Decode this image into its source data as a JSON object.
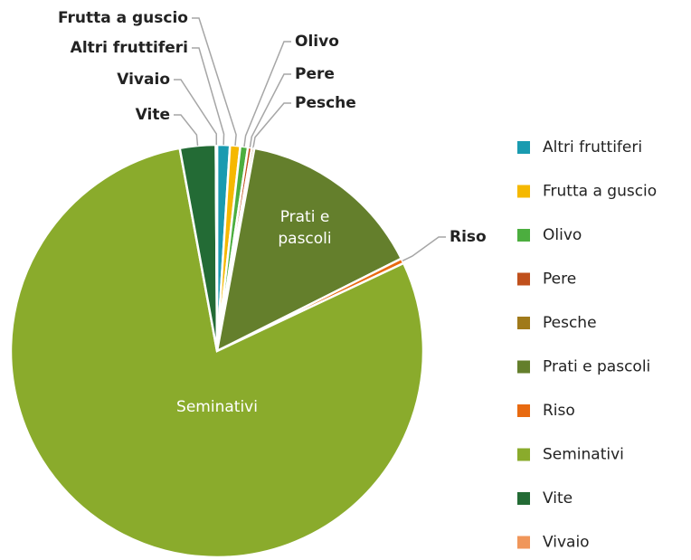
{
  "chart_data": {
    "type": "pie",
    "categories": [
      "Altri fruttiferi",
      "Frutta a guscio",
      "Olivo",
      "Pere",
      "Pesche",
      "Prati e pascoli",
      "Riso",
      "Seminativi",
      "Vite",
      "Vivaio"
    ],
    "values": [
      1.0,
      0.8,
      0.6,
      0.3,
      0.2,
      14.7,
      0.4,
      79.1,
      2.8,
      0.1
    ],
    "colors": [
      "#1a9bb0",
      "#f5b800",
      "#4cae3f",
      "#c0501c",
      "#a07a1a",
      "#647f2c",
      "#e86a10",
      "#8aab2c",
      "#236b35",
      "#f0965a"
    ],
    "legend": "right"
  }
}
